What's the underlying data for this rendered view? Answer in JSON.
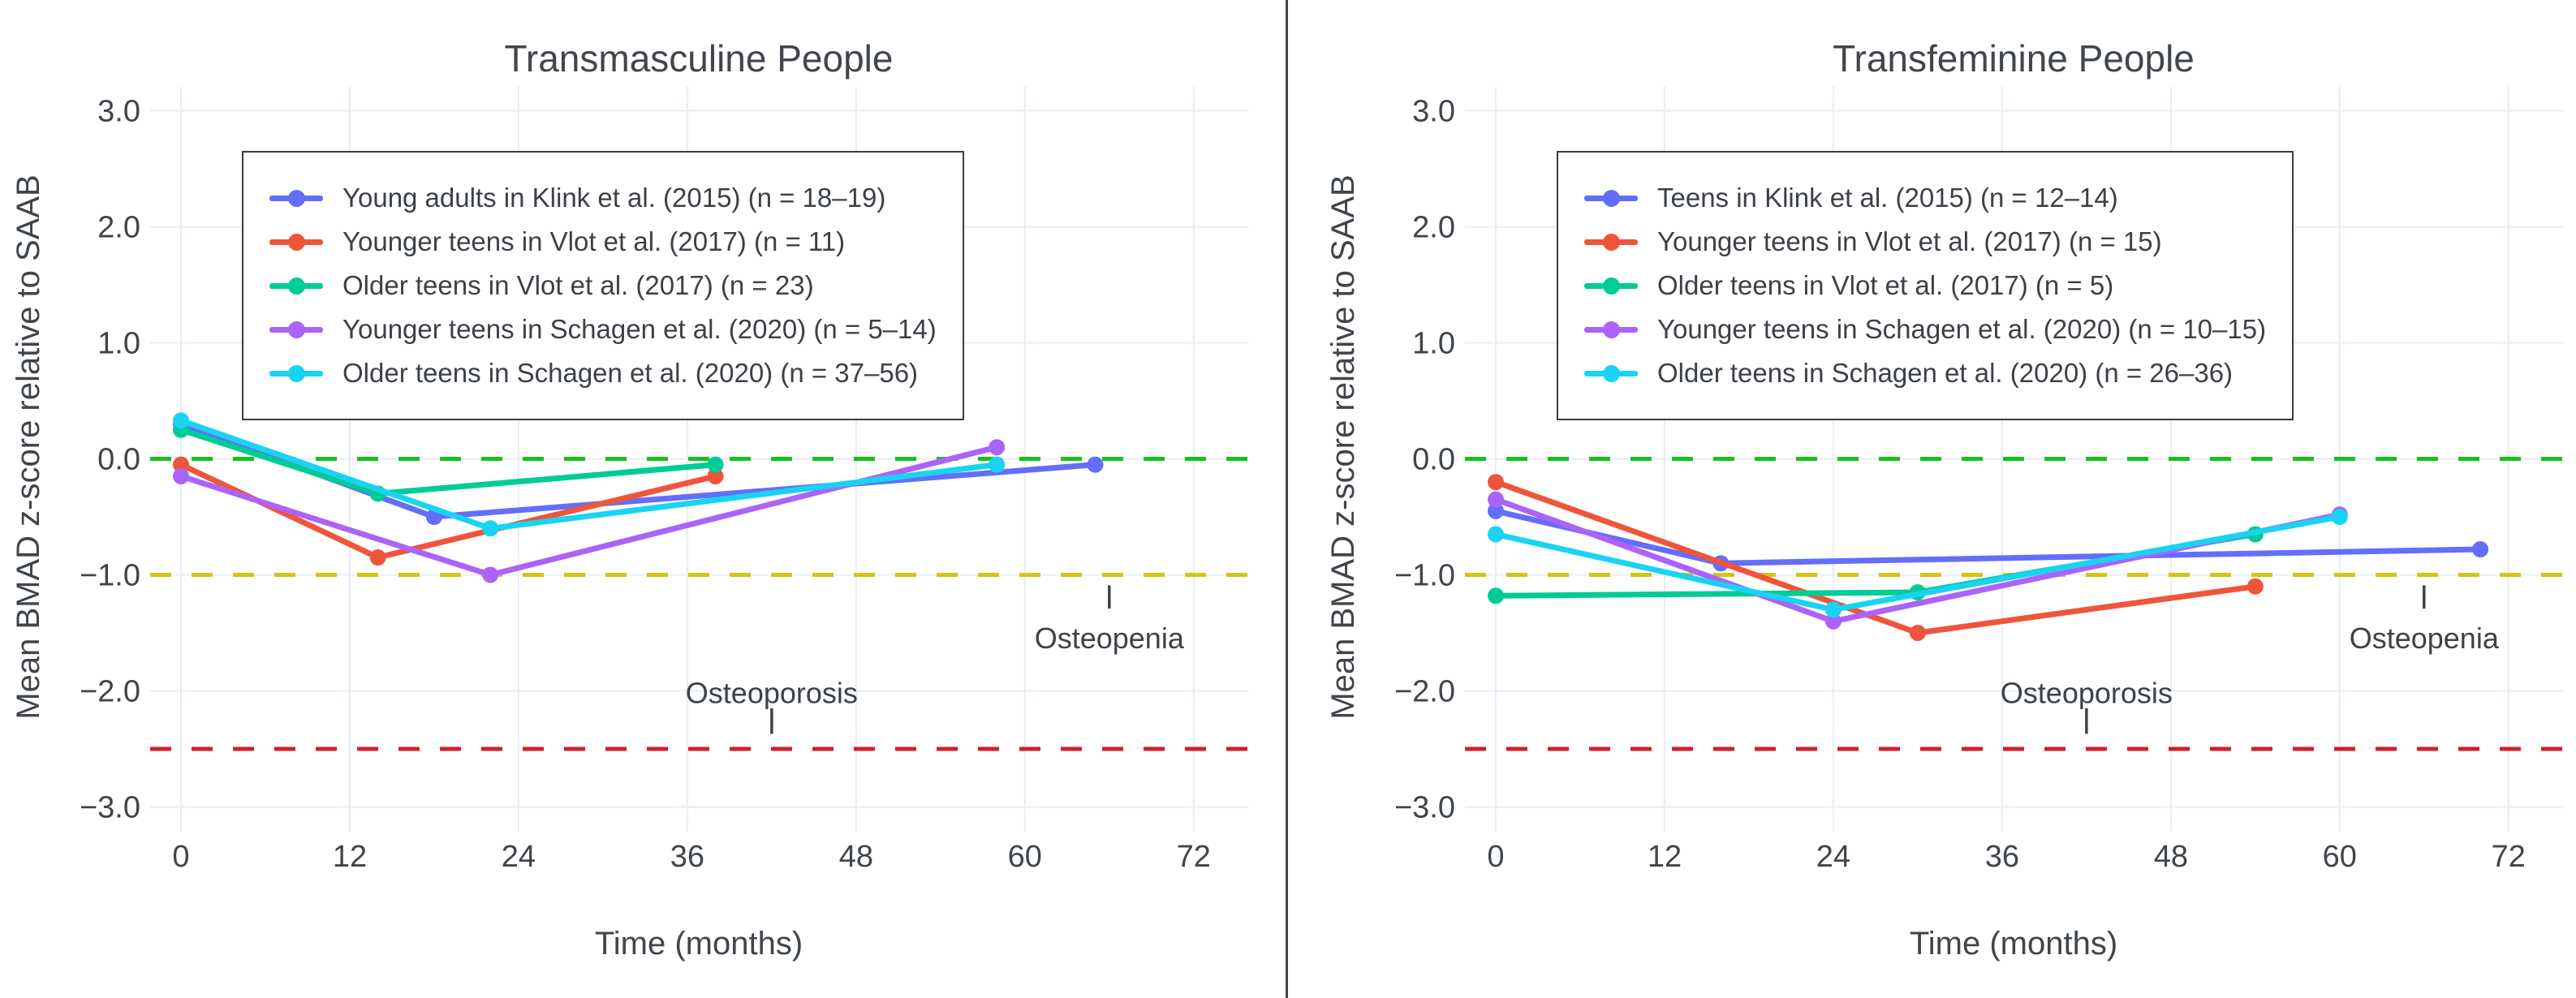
{
  "page": {
    "background": "#ffffff",
    "divider_color": "#454545",
    "grid_color": "#e8ecf6",
    "text_color": "#3f454b"
  },
  "chart_data": [
    {
      "type": "line",
      "title": "Transmasculine People",
      "xlabel": "Time (months)",
      "ylabel": "Mean BMAD z-score relative to SAAB",
      "x_ticks": [
        0,
        12,
        24,
        36,
        48,
        60,
        72
      ],
      "y_ticks": [
        3.0,
        2.0,
        1.0,
        0.0,
        -1.0,
        -2.0,
        -3.0
      ],
      "y_tick_labels": [
        "3.0",
        "2.0",
        "1.0",
        "0.0",
        "−1.0",
        "−2.0",
        "−3.0"
      ],
      "xlim": [
        -2.2,
        75.9
      ],
      "ylim": [
        -3.0,
        3.2
      ],
      "grid": true,
      "legend_position": "top-left-inside",
      "series": [
        {
          "name": "Young adults in Klink et al. (2015) (n = 18–19)",
          "color": "#636EFA",
          "x": [
            0,
            18,
            65
          ],
          "y": [
            0.3,
            -0.5,
            -0.05
          ]
        },
        {
          "name": "Younger teens in Vlot et al. (2017) (n = 11)",
          "color": "#EF553B",
          "x": [
            0,
            14,
            38
          ],
          "y": [
            -0.05,
            -0.85,
            -0.15
          ]
        },
        {
          "name": "Older teens in Vlot et al. (2017) (n = 23)",
          "color": "#00CC96",
          "x": [
            0,
            14,
            38
          ],
          "y": [
            0.25,
            -0.3,
            -0.05
          ]
        },
        {
          "name": "Younger teens in Schagen et al. (2020) (n = 5–14)",
          "color": "#AB63FA",
          "x": [
            0,
            22,
            58
          ],
          "y": [
            -0.15,
            -1.0,
            0.1
          ]
        },
        {
          "name": "Older teens in Schagen et al. (2020) (n = 37–56)",
          "color": "#19D3F3",
          "x": [
            0,
            22,
            58
          ],
          "y": [
            0.33,
            -0.6,
            -0.05
          ]
        }
      ],
      "reference_lines": [
        {
          "z": 0.0,
          "color": "#16c11f",
          "style": "dashed"
        },
        {
          "z": -1.0,
          "color": "#d3c512",
          "style": "dashed"
        },
        {
          "z": -2.5,
          "color": "#d0202a",
          "style": "dashed"
        }
      ],
      "annotations": [
        {
          "text": "Osteopenia",
          "x_months": 66,
          "z": -1.55,
          "tick_x_months": 66,
          "tick_z_from": -1.09,
          "tick_z_to": -1.29
        },
        {
          "text": "Osteoporosis",
          "x_months": 42,
          "z": -2.02,
          "tick_x_months": 42,
          "tick_z_from": -2.15,
          "tick_z_to": -2.37
        }
      ]
    },
    {
      "type": "line",
      "title": "Transfeminine People",
      "xlabel": "Time (months)",
      "ylabel": "Mean BMAD z-score relative to SAAB",
      "x_ticks": [
        0,
        12,
        24,
        36,
        48,
        60,
        72
      ],
      "y_ticks": [
        3.0,
        2.0,
        1.0,
        0.0,
        -1.0,
        -2.0,
        -3.0
      ],
      "y_tick_labels": [
        "3.0",
        "2.0",
        "1.0",
        "0.0",
        "−1.0",
        "−2.0",
        "−3.0"
      ],
      "xlim": [
        -2.2,
        75.9
      ],
      "ylim": [
        -3.0,
        3.2
      ],
      "grid": true,
      "legend_position": "top-left-inside",
      "series": [
        {
          "name": "Teens in Klink et al. (2015) (n = 12–14)",
          "color": "#636EFA",
          "x": [
            0,
            16,
            70
          ],
          "y": [
            -0.45,
            -0.9,
            -0.78
          ]
        },
        {
          "name": "Younger teens in Vlot et al. (2017) (n = 15)",
          "color": "#EF553B",
          "x": [
            0,
            30,
            54
          ],
          "y": [
            -0.2,
            -1.5,
            -1.1
          ]
        },
        {
          "name": "Older teens in Vlot et al. (2017) (n = 5)",
          "color": "#00CC96",
          "x": [
            0,
            30,
            54
          ],
          "y": [
            -1.18,
            -1.15,
            -0.65
          ]
        },
        {
          "name": "Younger teens in Schagen et al. (2020) (n = 10–15)",
          "color": "#AB63FA",
          "x": [
            0,
            24,
            60
          ],
          "y": [
            -0.35,
            -1.4,
            -0.48
          ]
        },
        {
          "name": "Older teens in Schagen et al. (2020) (n = 26–36)",
          "color": "#19D3F3",
          "x": [
            0,
            24,
            60
          ],
          "y": [
            -0.65,
            -1.3,
            -0.5
          ]
        }
      ],
      "reference_lines": [
        {
          "z": 0.0,
          "color": "#16c11f",
          "style": "dashed"
        },
        {
          "z": -1.0,
          "color": "#d3c512",
          "style": "dashed"
        },
        {
          "z": -2.5,
          "color": "#d0202a",
          "style": "dashed"
        }
      ],
      "annotations": [
        {
          "text": "Osteopenia",
          "x_months": 66,
          "z": -1.55,
          "tick_x_months": 66,
          "tick_z_from": -1.09,
          "tick_z_to": -1.29
        },
        {
          "text": "Osteoporosis",
          "x_months": 42,
          "z": -2.02,
          "tick_x_months": 42,
          "tick_z_from": -2.15,
          "tick_z_to": -2.37
        }
      ]
    }
  ]
}
